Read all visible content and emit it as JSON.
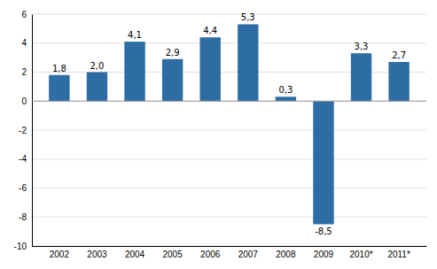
{
  "chart_data": {
    "type": "bar",
    "categories": [
      "2002",
      "2003",
      "2004",
      "2005",
      "2006",
      "2007",
      "2008",
      "2009",
      "2010*",
      "2011*"
    ],
    "values": [
      1.8,
      2.0,
      4.1,
      2.9,
      4.4,
      5.3,
      0.3,
      -8.5,
      3.3,
      2.7
    ],
    "value_labels": [
      "1,8",
      "2,0",
      "4,1",
      "2,9",
      "4,4",
      "5,3",
      "0,3",
      "-8,5",
      "3,3",
      "2,7"
    ],
    "data_labels": true,
    "color": "#2E6DA4",
    "ylim": [
      -10,
      6
    ],
    "yticks": [
      -10,
      -8,
      -6,
      -4,
      -2,
      0,
      2,
      4,
      6
    ],
    "grid": true
  }
}
